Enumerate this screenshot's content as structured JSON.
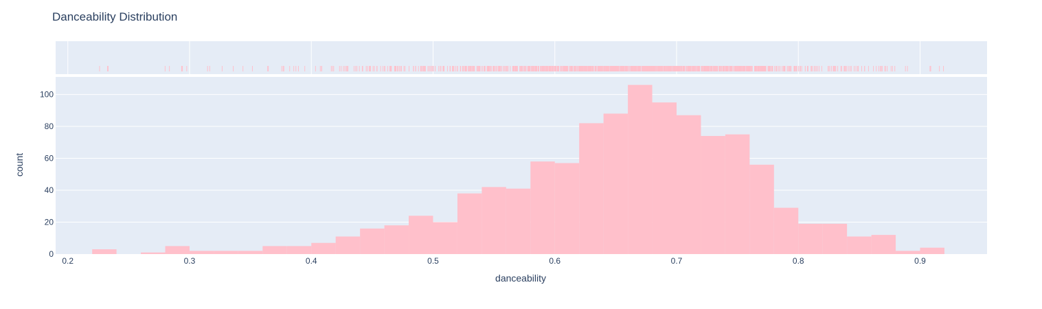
{
  "chart_data": {
    "type": "bar",
    "title": "Danceability Distribution",
    "xlabel": "danceability",
    "ylabel": "count",
    "xlim": [
      0.19,
      0.955
    ],
    "ylim": [
      0,
      111
    ],
    "bin_width": 0.02,
    "bins": [
      {
        "x0": 0.22,
        "count": 3
      },
      {
        "x0": 0.24,
        "count": 0
      },
      {
        "x0": 0.26,
        "count": 1
      },
      {
        "x0": 0.28,
        "count": 5
      },
      {
        "x0": 0.3,
        "count": 2
      },
      {
        "x0": 0.32,
        "count": 2
      },
      {
        "x0": 0.34,
        "count": 2
      },
      {
        "x0": 0.36,
        "count": 5
      },
      {
        "x0": 0.38,
        "count": 5
      },
      {
        "x0": 0.4,
        "count": 7
      },
      {
        "x0": 0.42,
        "count": 11
      },
      {
        "x0": 0.44,
        "count": 16
      },
      {
        "x0": 0.46,
        "count": 18
      },
      {
        "x0": 0.48,
        "count": 24
      },
      {
        "x0": 0.5,
        "count": 20
      },
      {
        "x0": 0.52,
        "count": 38
      },
      {
        "x0": 0.54,
        "count": 42
      },
      {
        "x0": 0.56,
        "count": 41
      },
      {
        "x0": 0.58,
        "count": 58
      },
      {
        "x0": 0.6,
        "count": 57
      },
      {
        "x0": 0.62,
        "count": 82
      },
      {
        "x0": 0.64,
        "count": 88
      },
      {
        "x0": 0.66,
        "count": 106
      },
      {
        "x0": 0.68,
        "count": 95
      },
      {
        "x0": 0.7,
        "count": 87
      },
      {
        "x0": 0.72,
        "count": 74
      },
      {
        "x0": 0.74,
        "count": 75
      },
      {
        "x0": 0.76,
        "count": 56
      },
      {
        "x0": 0.78,
        "count": 29
      },
      {
        "x0": 0.8,
        "count": 19
      },
      {
        "x0": 0.82,
        "count": 19
      },
      {
        "x0": 0.84,
        "count": 11
      },
      {
        "x0": 0.86,
        "count": 12
      },
      {
        "x0": 0.88,
        "count": 2
      },
      {
        "x0": 0.9,
        "count": 4
      }
    ],
    "x_ticks": [
      "0.2",
      "0.3",
      "0.4",
      "0.5",
      "0.6",
      "0.7",
      "0.8",
      "0.9"
    ],
    "y_ticks": [
      "0",
      "20",
      "40",
      "60",
      "80",
      "100"
    ],
    "rug": true,
    "grid": true,
    "colors": {
      "bar": "#ffc0cb",
      "plot_bg": "#e5ecf6",
      "grid": "#ffffff",
      "text": "#2a3f5f"
    }
  }
}
